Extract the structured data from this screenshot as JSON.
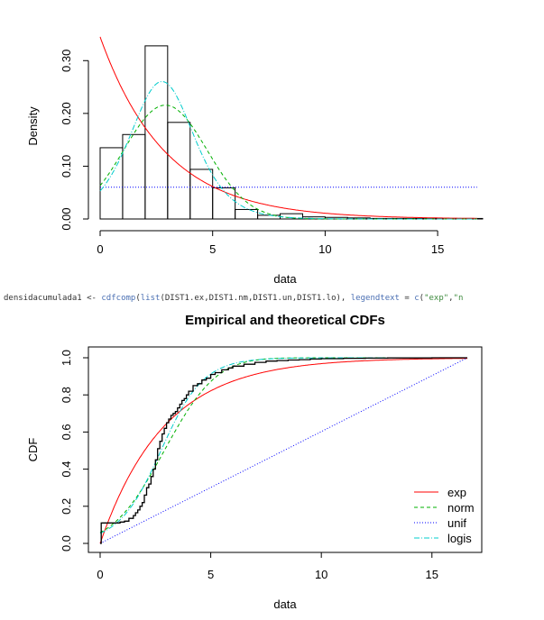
{
  "code": {
    "var": "densidacumulada1",
    "op": " <- ",
    "fn1": "cdfcomp",
    "p1": "(",
    "fn2": "list",
    "args": "(DIST1.ex,DIST1.nm,DIST1.un,DIST1.lo), ",
    "kw": "legendtext",
    "eq": " = ",
    "fn3": "c",
    "p2": "(",
    "s1": "\"exp\"",
    "comma": ",",
    "s2": "\"n"
  },
  "chart_data": [
    {
      "type": "histogram",
      "title": "",
      "xlabel": "data",
      "ylabel": "Density",
      "xlim": [
        0,
        16.8
      ],
      "ylim": [
        0,
        0.35
      ],
      "xticks": [
        0,
        5,
        10,
        15
      ],
      "yticks": [
        0.0,
        0.1,
        0.2,
        0.3
      ],
      "ytick_labels": [
        "0.00",
        "0.10",
        "0.20",
        "0.30"
      ],
      "bins": [
        0,
        1,
        2,
        3,
        4,
        5,
        6,
        7,
        8,
        9,
        10,
        11,
        12,
        13,
        14,
        15,
        16,
        17
      ],
      "densities": [
        0.135,
        0.16,
        0.328,
        0.183,
        0.094,
        0.059,
        0.018,
        0.007,
        0.01,
        0.004,
        0.003,
        0.002,
        0.001,
        0.001,
        0.001,
        0.001,
        0.001
      ],
      "curves": [
        {
          "name": "exp",
          "color": "#ff0000",
          "dash": "",
          "kind": "exp",
          "rate": 0.345
        },
        {
          "name": "norm",
          "color": "#00b000",
          "dash": "4,3",
          "kind": "norm",
          "mean": 2.9,
          "sd": 1.85
        },
        {
          "name": "unif",
          "color": "#0000ff",
          "dash": "1,2",
          "kind": "unif",
          "min": 0,
          "max": 16.6
        },
        {
          "name": "logis",
          "color": "#00cccc",
          "dash": "6,2,1,2",
          "kind": "logis",
          "loc": 2.75,
          "scale": 0.96
        }
      ]
    },
    {
      "type": "line",
      "title": "Empirical and theoretical CDFs",
      "xlabel": "data",
      "ylabel": "CDF",
      "xlim": [
        0,
        16.6
      ],
      "ylim": [
        0,
        1
      ],
      "xticks": [
        0,
        5,
        10,
        15
      ],
      "yticks": [
        0.0,
        0.2,
        0.4,
        0.6,
        0.8,
        1.0
      ],
      "ytick_labels": [
        "0.0",
        "0.2",
        "0.4",
        "0.6",
        "0.8",
        "1.0"
      ],
      "legend_position": "bottom-right",
      "empirical": {
        "x": [
          0,
          0.05,
          0.5,
          0.9,
          1.1,
          1.3,
          1.5,
          1.6,
          1.7,
          1.8,
          1.9,
          2.0,
          2.1,
          2.2,
          2.3,
          2.4,
          2.5,
          2.6,
          2.7,
          2.8,
          2.9,
          3.0,
          3.1,
          3.2,
          3.3,
          3.4,
          3.5,
          3.6,
          3.7,
          3.8,
          3.9,
          4.0,
          4.2,
          4.4,
          4.6,
          4.8,
          5.0,
          5.2,
          5.5,
          5.8,
          6.0,
          6.5,
          7.0,
          7.5,
          8.0,
          8.5,
          9.0,
          9.5,
          10.0,
          11.0,
          12.0,
          13.0,
          14.0,
          15.0,
          16.6
        ],
        "y": [
          0.0,
          0.11,
          0.11,
          0.115,
          0.12,
          0.135,
          0.15,
          0.165,
          0.18,
          0.2,
          0.22,
          0.26,
          0.3,
          0.32,
          0.36,
          0.4,
          0.45,
          0.51,
          0.55,
          0.59,
          0.62,
          0.65,
          0.67,
          0.69,
          0.7,
          0.71,
          0.73,
          0.75,
          0.77,
          0.78,
          0.8,
          0.82,
          0.85,
          0.86,
          0.88,
          0.89,
          0.91,
          0.92,
          0.935,
          0.945,
          0.955,
          0.965,
          0.975,
          0.982,
          0.985,
          0.988,
          0.99,
          0.993,
          0.995,
          0.997,
          0.998,
          0.999,
          0.999,
          1.0,
          1.0
        ],
        "color": "#000000"
      },
      "curves": [
        {
          "name": "exp",
          "color": "#ff0000",
          "dash": "",
          "kind": "exp",
          "rate": 0.345
        },
        {
          "name": "norm",
          "color": "#00b000",
          "dash": "4,3",
          "kind": "norm",
          "mean": 2.9,
          "sd": 1.85
        },
        {
          "name": "unif",
          "color": "#0000ff",
          "dash": "1,2",
          "kind": "unif",
          "min": 0,
          "max": 16.6
        },
        {
          "name": "logis",
          "color": "#00cccc",
          "dash": "6,2,1,2",
          "kind": "logis",
          "loc": 2.75,
          "scale": 0.96
        }
      ],
      "legend": [
        "exp",
        "norm",
        "unif",
        "logis"
      ]
    }
  ]
}
